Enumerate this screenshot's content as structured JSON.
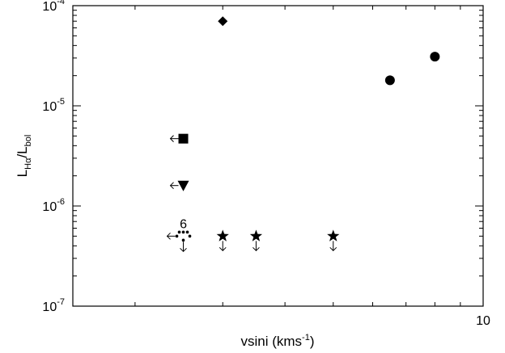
{
  "chart_data": {
    "type": "scatter",
    "title": "",
    "xlabel": "vsini (kms",
    "xlabel_sup": "-1",
    "xlabel_end": ")",
    "ylabel": "L",
    "ylabel_sub1": "Hα",
    "ylabel_mid": "/L",
    "ylabel_sub2": "bol",
    "x_scale": "log",
    "y_scale": "log",
    "xlim": [
      1.5,
      10
    ],
    "ylim": [
      1e-07,
      0.0001
    ],
    "x_tick_labels": [
      {
        "value": 10,
        "label": "10"
      }
    ],
    "y_tick_labels": [
      {
        "value": 0.0001,
        "base": "10",
        "exp": "-4"
      },
      {
        "value": 1e-05,
        "base": "10",
        "exp": "-5"
      },
      {
        "value": 1e-06,
        "base": "10",
        "exp": "-6"
      },
      {
        "value": 1e-07,
        "base": "10",
        "exp": "-7"
      }
    ],
    "grid": false,
    "legend": "none",
    "points": [
      {
        "marker": "diamond",
        "x": 3.0,
        "y": 7e-05
      },
      {
        "marker": "circle",
        "x": 6.5,
        "y": 1.8e-05
      },
      {
        "marker": "circle",
        "x": 8.0,
        "y": 3.1e-05
      },
      {
        "marker": "square",
        "x": 2.5,
        "y": 4.7e-06,
        "limit": "x-upper"
      },
      {
        "marker": "triangle-down",
        "x": 2.5,
        "y": 1.6e-06,
        "limit": "x-upper"
      },
      {
        "marker": "dot-cluster",
        "x": 2.5,
        "y": 5e-07,
        "limit": "xy-upper",
        "label": "6"
      },
      {
        "marker": "star",
        "x": 3.0,
        "y": 5e-07,
        "limit": "y-upper"
      },
      {
        "marker": "star",
        "x": 3.5,
        "y": 5e-07,
        "limit": "y-upper"
      },
      {
        "marker": "star",
        "x": 5.0,
        "y": 5e-07,
        "limit": "y-upper"
      }
    ]
  }
}
